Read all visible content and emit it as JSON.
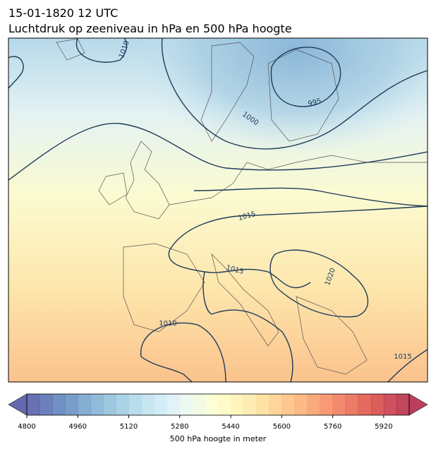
{
  "title": "15-01-1820 12 UTC",
  "subtitle": "Luchtdruk op zeeniveau in hPa en 500 hPa hoogte",
  "isobar_labels": [
    1010,
    995,
    1000,
    1015,
    1015,
    1020,
    1010,
    1015
  ],
  "colorbar": {
    "label": "500 hPa hoogte in meter",
    "lim": [
      4800,
      6000
    ],
    "ticks": [
      4800,
      4960,
      5120,
      5280,
      5440,
      5600,
      5760,
      5920
    ],
    "cmap": "RdYlBu_r",
    "extend": "both"
  }
}
